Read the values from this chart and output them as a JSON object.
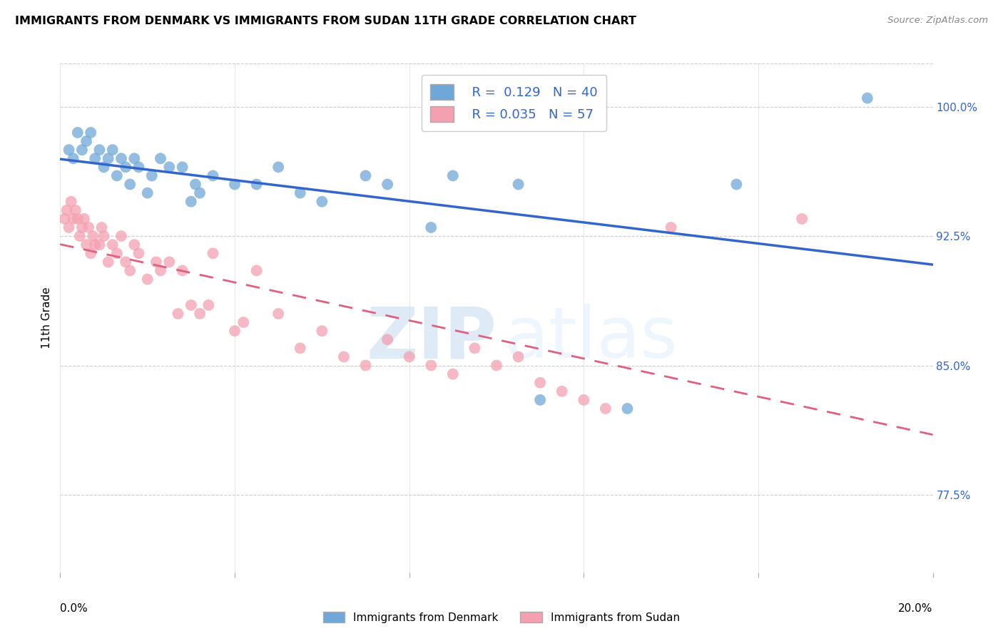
{
  "title": "IMMIGRANTS FROM DENMARK VS IMMIGRANTS FROM SUDAN 11TH GRADE CORRELATION CHART",
  "source": "Source: ZipAtlas.com",
  "ylabel": "11th Grade",
  "y_ticks": [
    77.5,
    85.0,
    92.5,
    100.0
  ],
  "y_tick_labels": [
    "77.5%",
    "85.0%",
    "92.5%",
    "100.0%"
  ],
  "x_range": [
    0.0,
    20.0
  ],
  "y_range": [
    73.0,
    102.5
  ],
  "denmark_R": 0.129,
  "denmark_N": 40,
  "sudan_R": 0.035,
  "sudan_N": 57,
  "denmark_color": "#6fa8d8",
  "sudan_color": "#f4a0b0",
  "denmark_line_color": "#3366cc",
  "sudan_line_color": "#e06080",
  "watermark_zip": "ZIP",
  "watermark_atlas": "atlas",
  "denmark_points": [
    [
      0.2,
      97.5
    ],
    [
      0.3,
      97.0
    ],
    [
      0.4,
      98.5
    ],
    [
      0.5,
      97.5
    ],
    [
      0.6,
      98.0
    ],
    [
      0.7,
      98.5
    ],
    [
      0.8,
      97.0
    ],
    [
      0.9,
      97.5
    ],
    [
      1.0,
      96.5
    ],
    [
      1.1,
      97.0
    ],
    [
      1.2,
      97.5
    ],
    [
      1.3,
      96.0
    ],
    [
      1.4,
      97.0
    ],
    [
      1.5,
      96.5
    ],
    [
      1.6,
      95.5
    ],
    [
      1.7,
      97.0
    ],
    [
      1.8,
      96.5
    ],
    [
      2.0,
      95.0
    ],
    [
      2.1,
      96.0
    ],
    [
      2.3,
      97.0
    ],
    [
      2.5,
      96.5
    ],
    [
      2.8,
      96.5
    ],
    [
      3.0,
      94.5
    ],
    [
      3.1,
      95.5
    ],
    [
      3.2,
      95.0
    ],
    [
      3.5,
      96.0
    ],
    [
      4.0,
      95.5
    ],
    [
      4.5,
      95.5
    ],
    [
      5.0,
      96.5
    ],
    [
      5.5,
      95.0
    ],
    [
      6.0,
      94.5
    ],
    [
      7.0,
      96.0
    ],
    [
      7.5,
      95.5
    ],
    [
      8.5,
      93.0
    ],
    [
      9.0,
      96.0
    ],
    [
      10.5,
      95.5
    ],
    [
      11.0,
      83.0
    ],
    [
      13.0,
      82.5
    ],
    [
      15.5,
      95.5
    ],
    [
      18.5,
      100.5
    ]
  ],
  "sudan_points": [
    [
      0.1,
      93.5
    ],
    [
      0.15,
      94.0
    ],
    [
      0.2,
      93.0
    ],
    [
      0.25,
      94.5
    ],
    [
      0.3,
      93.5
    ],
    [
      0.35,
      94.0
    ],
    [
      0.4,
      93.5
    ],
    [
      0.45,
      92.5
    ],
    [
      0.5,
      93.0
    ],
    [
      0.55,
      93.5
    ],
    [
      0.6,
      92.0
    ],
    [
      0.65,
      93.0
    ],
    [
      0.7,
      91.5
    ],
    [
      0.75,
      92.5
    ],
    [
      0.8,
      92.0
    ],
    [
      0.9,
      92.0
    ],
    [
      0.95,
      93.0
    ],
    [
      1.0,
      92.5
    ],
    [
      1.1,
      91.0
    ],
    [
      1.2,
      92.0
    ],
    [
      1.3,
      91.5
    ],
    [
      1.4,
      92.5
    ],
    [
      1.5,
      91.0
    ],
    [
      1.6,
      90.5
    ],
    [
      1.7,
      92.0
    ],
    [
      1.8,
      91.5
    ],
    [
      2.0,
      90.0
    ],
    [
      2.2,
      91.0
    ],
    [
      2.3,
      90.5
    ],
    [
      2.5,
      91.0
    ],
    [
      2.7,
      88.0
    ],
    [
      2.8,
      90.5
    ],
    [
      3.0,
      88.5
    ],
    [
      3.2,
      88.0
    ],
    [
      3.4,
      88.5
    ],
    [
      3.5,
      91.5
    ],
    [
      4.0,
      87.0
    ],
    [
      4.2,
      87.5
    ],
    [
      4.5,
      90.5
    ],
    [
      5.0,
      88.0
    ],
    [
      5.5,
      86.0
    ],
    [
      6.0,
      87.0
    ],
    [
      6.5,
      85.5
    ],
    [
      7.0,
      85.0
    ],
    [
      7.5,
      86.5
    ],
    [
      8.0,
      85.5
    ],
    [
      8.5,
      85.0
    ],
    [
      9.0,
      84.5
    ],
    [
      9.5,
      86.0
    ],
    [
      10.0,
      85.0
    ],
    [
      10.5,
      85.5
    ],
    [
      11.0,
      84.0
    ],
    [
      11.5,
      83.5
    ],
    [
      12.0,
      83.0
    ],
    [
      12.5,
      82.5
    ],
    [
      14.0,
      93.0
    ],
    [
      17.0,
      93.5
    ]
  ]
}
